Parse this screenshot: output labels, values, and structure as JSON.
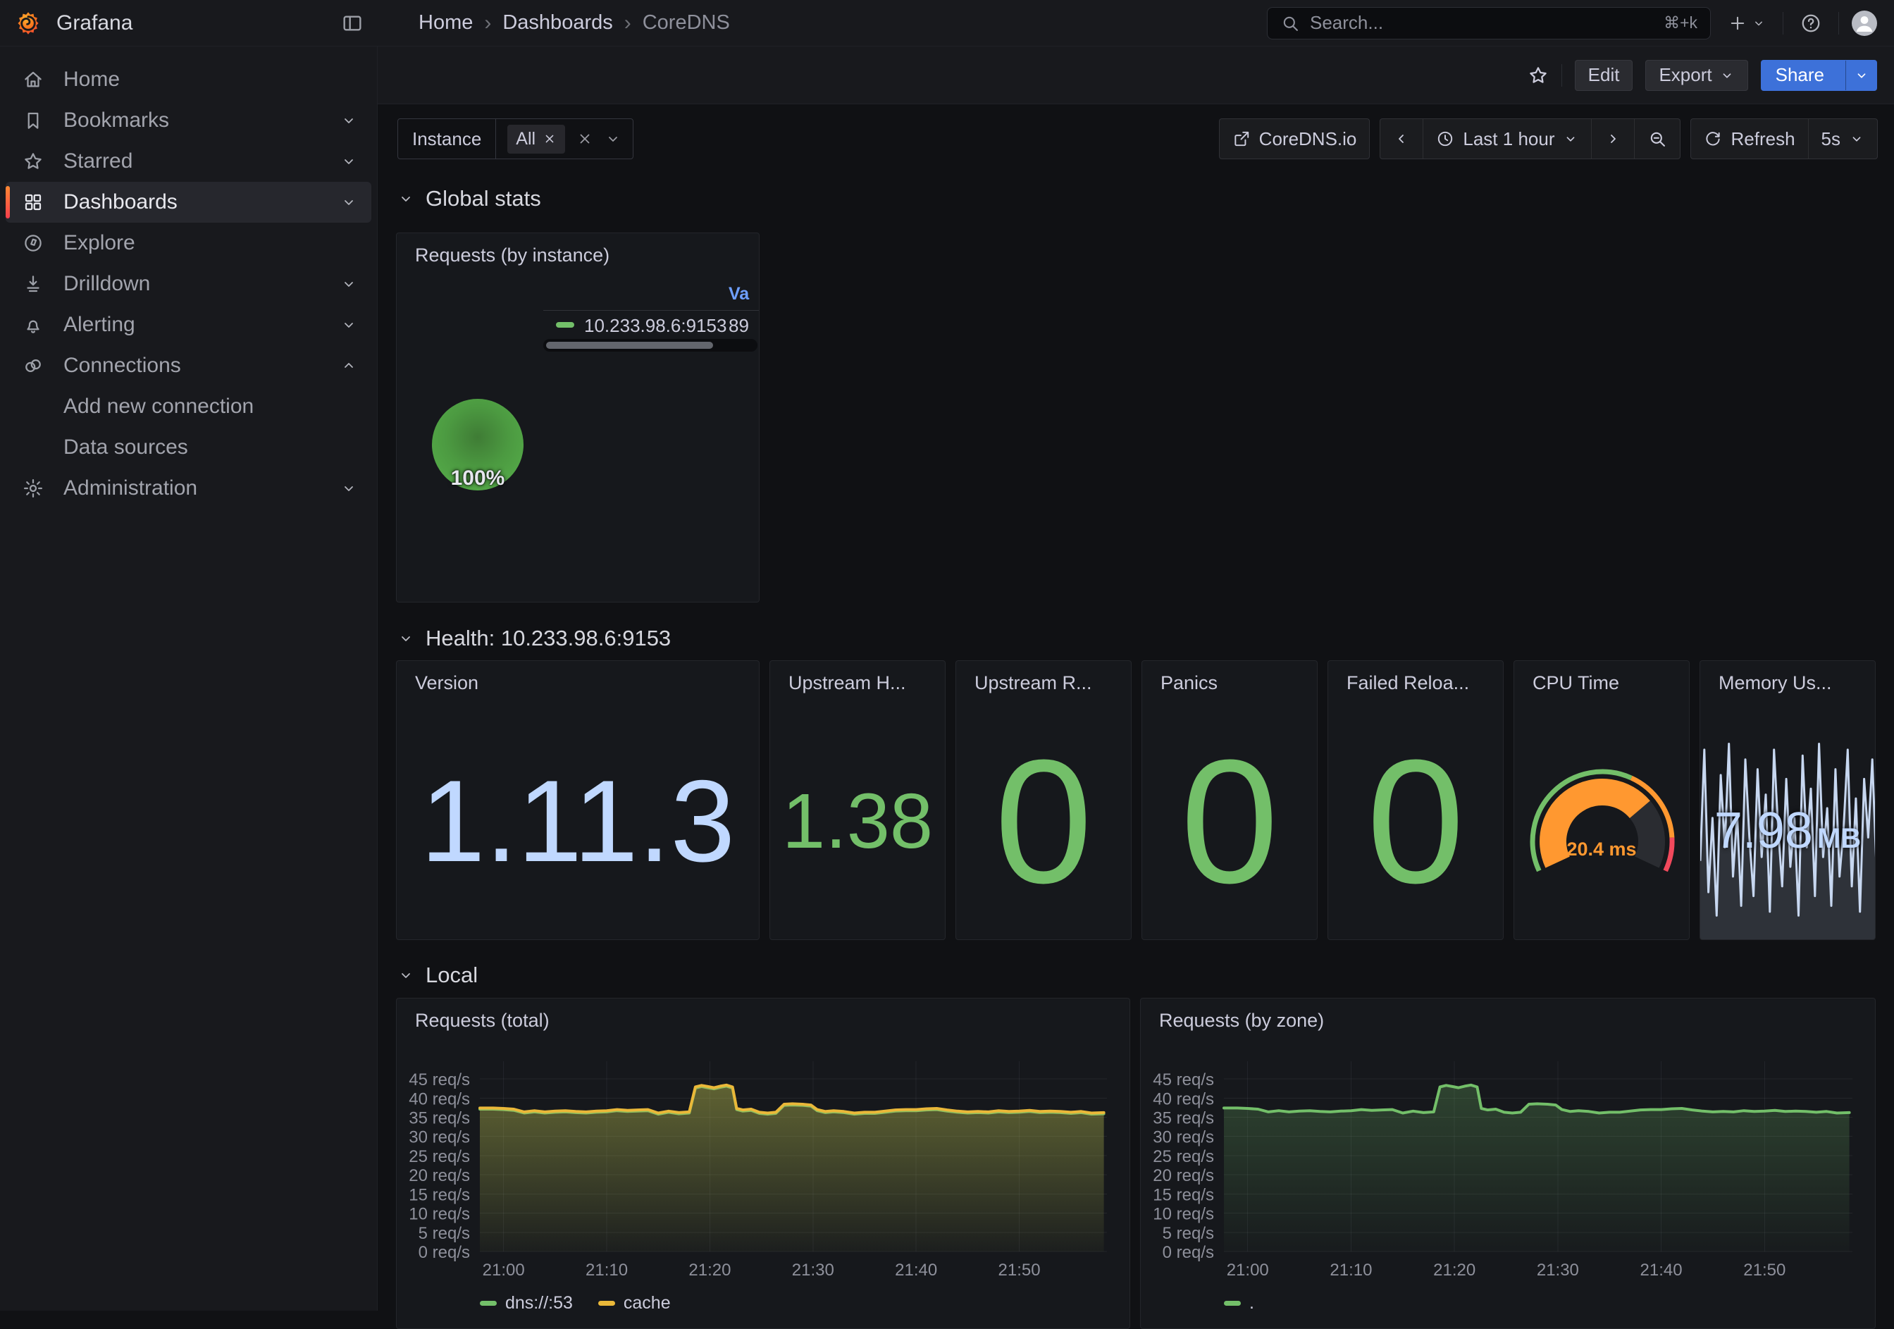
{
  "header": {
    "brand": "Grafana",
    "breadcrumbs": [
      "Home",
      "Dashboards",
      "CoreDNS"
    ],
    "search_placeholder": "Search...",
    "search_shortcut": "⌘+k"
  },
  "sidebar": {
    "items": [
      {
        "label": "Home"
      },
      {
        "label": "Bookmarks"
      },
      {
        "label": "Starred"
      },
      {
        "label": "Dashboards"
      },
      {
        "label": "Explore"
      },
      {
        "label": "Drilldown"
      },
      {
        "label": "Alerting"
      },
      {
        "label": "Connections"
      },
      {
        "label": "Add new connection"
      },
      {
        "label": "Data sources"
      },
      {
        "label": "Administration"
      }
    ]
  },
  "dash_toolbar": {
    "edit": "Edit",
    "export": "Export",
    "share": "Share"
  },
  "sub_toolbar": {
    "filter_label": "Instance",
    "filter_value": "All",
    "link": "CoreDNS.io",
    "time_range": "Last 1 hour",
    "refresh": "Refresh",
    "interval": "5s"
  },
  "sections": {
    "global": "Global stats",
    "health": "Health: 10.233.98.6:9153",
    "local": "Local"
  },
  "chart_data": [
    {
      "id": "requests-by-instance",
      "type": "pie",
      "title": "Requests (by instance)",
      "legend": {
        "value_header": "Value",
        "visible_value_header": "Va"
      },
      "slices": [
        {
          "label": "10.233.98.6:9153",
          "percent": 100,
          "color": "#73BF69",
          "value_visible": "89"
        }
      ],
      "center_label": "100%"
    },
    {
      "id": "version",
      "type": "stat",
      "title": "Version",
      "value": "1.11.3",
      "color": "#C0D8FF",
      "font": 165
    },
    {
      "id": "upstream-h",
      "type": "stat",
      "title": "Upstream H...",
      "value": "1.38",
      "color": "#73BF69",
      "font": 110
    },
    {
      "id": "upstream-r",
      "type": "stat",
      "title": "Upstream R...",
      "value": "0",
      "color": "#73BF69",
      "font": 250
    },
    {
      "id": "panics",
      "type": "stat",
      "title": "Panics",
      "value": "0",
      "color": "#73BF69",
      "font": 250
    },
    {
      "id": "failed-reloads",
      "type": "stat",
      "title": "Failed Reloa...",
      "value": "0",
      "color": "#73BF69",
      "font": 250
    },
    {
      "id": "cpu-time",
      "type": "gauge",
      "title": "CPU Time",
      "value_text": "20.4 ms",
      "value_fraction": 0.716,
      "bar_color": "#FF9830",
      "track_color": "#2a2c31",
      "thresholds": [
        {
          "color": "#73BF69",
          "to": 0.607
        },
        {
          "color": "#FF9830",
          "to": 0.878
        },
        {
          "color": "#F2495C",
          "to": 1.0
        }
      ]
    },
    {
      "id": "memory-usage",
      "type": "sparkline",
      "title": "Memory Us...",
      "value": "7.98",
      "unit": "MB",
      "line_color": "#C7D7F0",
      "fill_color": "rgba(200,212,235,0.14)",
      "points": [
        0.38,
        0.95,
        0.22,
        0.6,
        0.1,
        0.82,
        0.45,
        0.98,
        0.3,
        0.62,
        0.15,
        0.9,
        0.5,
        0.2,
        0.85,
        0.4,
        0.72,
        0.12,
        0.95,
        0.55,
        0.25,
        0.8,
        0.35,
        0.6,
        0.1,
        0.92,
        0.45,
        0.75,
        0.2,
        0.98,
        0.4,
        0.65,
        0.15,
        0.85,
        0.3,
        0.55,
        0.95,
        0.25,
        0.7,
        0.12,
        0.8,
        0.5,
        0.9,
        0.35
      ]
    },
    {
      "id": "requests-total",
      "type": "timeseries",
      "title": "Requests (total)",
      "xlabel": "",
      "ylabel": "req/s",
      "grid": true,
      "legend_position": "bottom",
      "x_domain": [
        -2.3,
        58.5
      ],
      "ylim": [
        0,
        49.6
      ],
      "x_tick_minutes": [
        0,
        10,
        20,
        30,
        40,
        50
      ],
      "x_tick_labels": [
        "21:00",
        "21:10",
        "21:20",
        "21:30",
        "21:40",
        "21:50"
      ],
      "y_tick_values": [
        0,
        5,
        10,
        15,
        20,
        25,
        30,
        35,
        40,
        45
      ],
      "y_tick_labels": [
        "0 req/s",
        "5 req/s",
        "10 req/s",
        "15 req/s",
        "20 req/s",
        "25 req/s",
        "30 req/s",
        "35 req/s",
        "40 req/s",
        "45 req/s"
      ],
      "x": [
        -2.3,
        -1,
        0,
        1,
        2,
        3,
        4,
        5,
        6,
        7,
        8,
        9,
        10,
        11,
        12,
        13,
        14,
        15,
        16,
        17,
        18,
        18.6,
        19.2,
        19.8,
        20.4,
        21,
        21.6,
        22.2,
        22.6,
        23.2,
        24,
        24.8,
        25.6,
        26.4,
        27.2,
        28,
        29,
        29.8,
        30.4,
        31.2,
        32,
        33,
        34,
        35,
        36,
        37,
        38,
        39,
        40,
        41,
        42,
        43,
        44,
        45,
        46,
        47,
        48,
        49,
        50,
        51,
        52,
        53,
        54,
        55,
        56,
        57,
        58.2
      ],
      "series": [
        {
          "name": "dns://:53",
          "color": "#73BF69",
          "values": [
            37.1,
            37.1,
            37.0,
            36.8,
            36.1,
            36.4,
            36.1,
            36.3,
            36.4,
            36.2,
            36.1,
            36.3,
            36.4,
            36.7,
            36.5,
            36.6,
            36.7,
            35.8,
            36.3,
            35.9,
            36.1,
            42.6,
            43.0,
            42.7,
            42.4,
            42.8,
            43.1,
            42.6,
            37.0,
            36.6,
            36.8,
            36.0,
            35.8,
            36.0,
            38.1,
            38.2,
            38.1,
            37.9,
            36.7,
            36.2,
            36.4,
            36.2,
            35.8,
            36.0,
            36.0,
            36.3,
            36.6,
            36.7,
            36.7,
            36.9,
            37.0,
            36.6,
            36.3,
            36.1,
            36.2,
            36.1,
            36.4,
            36.2,
            36.3,
            36.5,
            36.2,
            36.3,
            36.2,
            36.0,
            36.2,
            35.8,
            35.9
          ]
        },
        {
          "name": "cache",
          "color": "#EAB839",
          "values": [
            37.4,
            37.4,
            37.3,
            37.1,
            36.4,
            36.7,
            36.4,
            36.6,
            36.7,
            36.5,
            36.4,
            36.6,
            36.7,
            37.0,
            36.8,
            36.9,
            37.0,
            36.1,
            36.6,
            36.2,
            36.4,
            42.9,
            43.3,
            43.0,
            42.7,
            43.1,
            43.4,
            42.9,
            37.3,
            36.9,
            37.1,
            36.3,
            36.1,
            36.3,
            38.4,
            38.5,
            38.4,
            38.2,
            37.0,
            36.5,
            36.7,
            36.5,
            36.1,
            36.3,
            36.3,
            36.6,
            36.9,
            37.0,
            37.0,
            37.2,
            37.3,
            36.9,
            36.6,
            36.4,
            36.5,
            36.4,
            36.7,
            36.5,
            36.6,
            36.8,
            36.5,
            36.6,
            36.5,
            36.3,
            36.5,
            36.1,
            36.2
          ]
        }
      ]
    },
    {
      "id": "requests-by-zone",
      "type": "timeseries",
      "title": "Requests (by zone)",
      "xlabel": "",
      "ylabel": "req/s",
      "grid": true,
      "legend_position": "bottom",
      "x_domain": [
        -2.3,
        58.5
      ],
      "ylim": [
        0,
        49.6
      ],
      "x_tick_minutes": [
        0,
        10,
        20,
        30,
        40,
        50
      ],
      "x_tick_labels": [
        "21:00",
        "21:10",
        "21:20",
        "21:30",
        "21:40",
        "21:50"
      ],
      "y_tick_values": [
        0,
        5,
        10,
        15,
        20,
        25,
        30,
        35,
        40,
        45
      ],
      "y_tick_labels": [
        "0 req/s",
        "5 req/s",
        "10 req/s",
        "15 req/s",
        "20 req/s",
        "25 req/s",
        "30 req/s",
        "35 req/s",
        "40 req/s",
        "45 req/s"
      ],
      "x": [
        -2.3,
        -1,
        0,
        1,
        2,
        3,
        4,
        5,
        6,
        7,
        8,
        9,
        10,
        11,
        12,
        13,
        14,
        15,
        16,
        17,
        18,
        18.6,
        19.2,
        19.8,
        20.4,
        21,
        21.6,
        22.2,
        22.6,
        23.2,
        24,
        24.8,
        25.6,
        26.4,
        27.2,
        28,
        29,
        29.8,
        30.4,
        31.2,
        32,
        33,
        34,
        35,
        36,
        37,
        38,
        39,
        40,
        41,
        42,
        43,
        44,
        45,
        46,
        47,
        48,
        49,
        50,
        51,
        52,
        53,
        54,
        55,
        56,
        57,
        58.2
      ],
      "series": [
        {
          "name": ".",
          "color": "#73BF69",
          "values": [
            37.4,
            37.4,
            37.3,
            37.1,
            36.4,
            36.7,
            36.4,
            36.6,
            36.7,
            36.5,
            36.4,
            36.6,
            36.7,
            37.0,
            36.8,
            36.9,
            37.0,
            36.1,
            36.6,
            36.2,
            36.4,
            42.9,
            43.3,
            43.0,
            42.7,
            43.1,
            43.4,
            42.9,
            37.3,
            36.9,
            37.1,
            36.3,
            36.1,
            36.3,
            38.4,
            38.5,
            38.4,
            38.2,
            37.0,
            36.5,
            36.7,
            36.5,
            36.1,
            36.3,
            36.3,
            36.6,
            36.9,
            37.0,
            37.0,
            37.2,
            37.3,
            36.9,
            36.6,
            36.4,
            36.5,
            36.4,
            36.7,
            36.5,
            36.6,
            36.8,
            36.5,
            36.6,
            36.5,
            36.3,
            36.5,
            36.1,
            36.2
          ]
        }
      ]
    }
  ]
}
